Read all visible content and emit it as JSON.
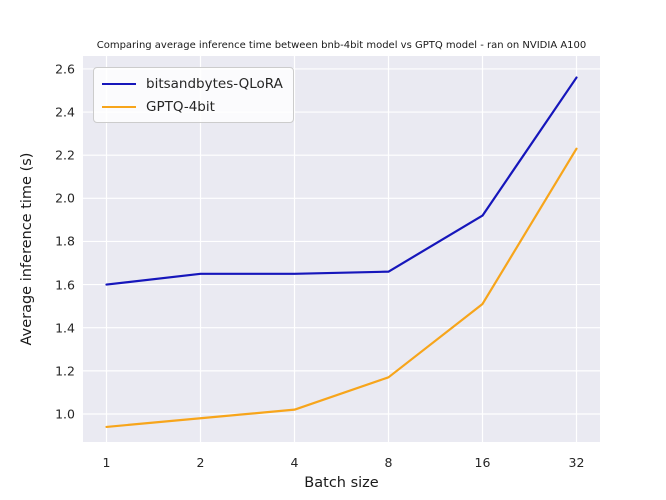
{
  "chart_data": {
    "type": "line",
    "title": "Comparing average inference time between bnb-4bit model vs GPTQ model - ran on NVIDIA A100",
    "xlabel": "Batch size",
    "ylabel": "Average inference time (s)",
    "x_scale": "log2",
    "categories": [
      "1",
      "2",
      "4",
      "8",
      "16",
      "32"
    ],
    "x_values": [
      1,
      2,
      4,
      8,
      16,
      32
    ],
    "series": [
      {
        "name": "bitsandbytes-QLoRA",
        "color": "#1616bb",
        "values": [
          1.6,
          1.65,
          1.65,
          1.66,
          1.92,
          2.56
        ]
      },
      {
        "name": "GPTQ-4bit",
        "color": "#f7a51b",
        "values": [
          0.94,
          0.98,
          1.02,
          1.17,
          1.51,
          2.23
        ]
      }
    ],
    "yticks": [
      "1.0",
      "1.2",
      "1.4",
      "1.6",
      "1.8",
      "2.0",
      "2.2",
      "2.4",
      "2.6"
    ],
    "ylim": [
      0.87,
      2.66
    ],
    "grid": true,
    "grid_color": "#ffffff",
    "plot_bg": "#eaeaf2",
    "text_color": "#262626",
    "legend_position": "upper left"
  }
}
